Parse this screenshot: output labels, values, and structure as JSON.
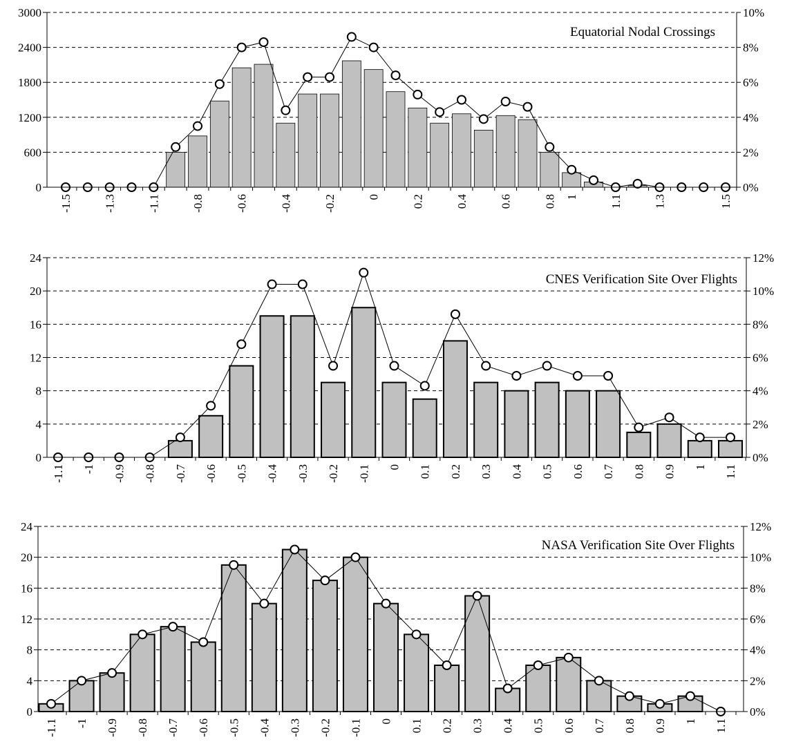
{
  "chart_data": [
    {
      "type": "bar",
      "title": "Equatorial Nodal Crossings",
      "categories": [
        "-1.5",
        null,
        "-1.3",
        null,
        "-1.1",
        null,
        "-0.8",
        null,
        "-0.6",
        null,
        "-0.4",
        null,
        "-0.2",
        null,
        "0",
        null,
        "0.2",
        null,
        "0.4",
        null,
        "0.6",
        null,
        "0.8",
        "1",
        null,
        "1.1",
        null,
        "1.3",
        null,
        null,
        "1.5"
      ],
      "series": [
        {
          "type": "bar",
          "color": "#c0c0c0",
          "values": [
            0,
            0,
            0,
            0,
            0,
            600,
            880,
            1480,
            2050,
            2110,
            1100,
            1600,
            1600,
            2170,
            2020,
            1640,
            1360,
            1100,
            1260,
            980,
            1230,
            1160,
            600,
            250,
            90,
            0,
            30,
            0,
            0,
            0,
            0
          ]
        },
        {
          "type": "line",
          "axis": "y2",
          "color": "#000000",
          "values": [
            0,
            0,
            0,
            0,
            0,
            2.3,
            3.5,
            5.9,
            8.0,
            8.3,
            4.4,
            6.3,
            6.3,
            8.6,
            8.0,
            6.4,
            5.3,
            4.3,
            5.0,
            3.9,
            4.9,
            4.6,
            2.3,
            1.0,
            0.4,
            0,
            0.2,
            0,
            0,
            0,
            0
          ]
        }
      ],
      "ylim": [
        0,
        3000
      ],
      "yticks": [
        0,
        600,
        1200,
        1800,
        2400,
        3000
      ],
      "y2lim": [
        0,
        10
      ],
      "y2ticks": [
        {
          "value": 0,
          "label": "0%"
        },
        {
          "value": 2,
          "label": "2%"
        },
        {
          "value": 4,
          "label": "4%"
        },
        {
          "value": 6,
          "label": "6%"
        },
        {
          "value": 8,
          "label": "8%"
        },
        {
          "value": 10,
          "label": "10%"
        }
      ],
      "grid": true
    },
    {
      "type": "bar",
      "title": "CNES Verification Site Over Flights",
      "categories": [
        "-1.1",
        "-1",
        "-0.9",
        "-0.8",
        "-0.7",
        "-0.6",
        "-0.5",
        "-0.4",
        "-0.3",
        "-0.2",
        "-0.1",
        "0",
        "0.1",
        "0.2",
        "0.3",
        "0.4",
        "0.5",
        "0.6",
        "0.7",
        "0.8",
        "0.9",
        "1",
        "1.1"
      ],
      "series": [
        {
          "type": "bar",
          "color": "#c0c0c0",
          "values": [
            0,
            0,
            0,
            0,
            2,
            5,
            11,
            17,
            17,
            9,
            18,
            9,
            7,
            14,
            9,
            8,
            9,
            8,
            8,
            3,
            4,
            2,
            2
          ]
        },
        {
          "type": "line",
          "axis": "y2",
          "color": "#000000",
          "values": [
            0,
            0,
            0,
            0,
            1.2,
            3.1,
            6.8,
            10.4,
            10.4,
            5.5,
            11.1,
            5.5,
            4.3,
            8.6,
            5.5,
            4.9,
            5.5,
            4.9,
            4.9,
            1.8,
            2.4,
            1.2,
            1.2
          ]
        }
      ],
      "ylim": [
        0,
        24
      ],
      "yticks": [
        0,
        4,
        8,
        12,
        16,
        20,
        24
      ],
      "y2lim": [
        0,
        12
      ],
      "y2ticks": [
        {
          "value": 0,
          "label": "0%"
        },
        {
          "value": 2,
          "label": "2%"
        },
        {
          "value": 4,
          "label": "4%"
        },
        {
          "value": 6,
          "label": "6%"
        },
        {
          "value": 8,
          "label": "8%"
        },
        {
          "value": 10,
          "label": "10%"
        },
        {
          "value": 12,
          "label": "12%"
        }
      ],
      "grid": true
    },
    {
      "type": "bar",
      "title": "NASA Verification Site Over Flights",
      "categories": [
        "-1.1",
        "-1",
        "-0.9",
        "-0.8",
        "-0.7",
        "-0.6",
        "-0.5",
        "-0.4",
        "-0.3",
        "-0.2",
        "-0.1",
        "0",
        "0.1",
        "0.2",
        "0.3",
        "0.4",
        "0.5",
        "0.6",
        "0.7",
        "0.8",
        "0.9",
        "1",
        "1.1"
      ],
      "series": [
        {
          "type": "bar",
          "color": "#c0c0c0",
          "values": [
            1,
            4,
            5,
            10,
            11,
            9,
            19,
            14,
            21,
            17,
            20,
            14,
            10,
            6,
            15,
            3,
            6,
            7,
            4,
            2,
            1,
            2,
            0
          ]
        },
        {
          "type": "line",
          "axis": "y2",
          "color": "#000000",
          "values": [
            0.5,
            2,
            2.5,
            5,
            5.5,
            4.5,
            9.5,
            7,
            10.5,
            8.5,
            10,
            7,
            5,
            3,
            7.5,
            1.5,
            3,
            3.5,
            2,
            1,
            0.5,
            1,
            0
          ]
        }
      ],
      "ylim": [
        0,
        24
      ],
      "yticks": [
        0,
        4,
        8,
        12,
        16,
        20,
        24
      ],
      "y2lim": [
        0,
        12
      ],
      "y2ticks": [
        {
          "value": 0,
          "label": "0%"
        },
        {
          "value": 2,
          "label": "2%"
        },
        {
          "value": 4,
          "label": "4%"
        },
        {
          "value": 6,
          "label": "6%"
        },
        {
          "value": 8,
          "label": "8%"
        },
        {
          "value": 10,
          "label": "10%"
        },
        {
          "value": 12,
          "label": "12%"
        }
      ],
      "grid": true
    }
  ]
}
